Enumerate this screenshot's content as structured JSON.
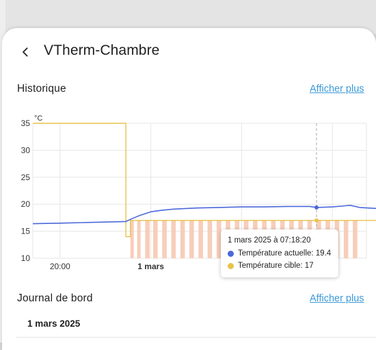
{
  "app": {
    "title": "VTherm-Chambre"
  },
  "history": {
    "heading": "Historique",
    "show_more": "Afficher plus"
  },
  "logbook": {
    "heading": "Journal de bord",
    "show_more": "Afficher plus",
    "date": "1 mars 2025"
  },
  "tooltip": {
    "title": "1 mars 2025 à 07:18:20",
    "rows": [
      {
        "label": "Température actuelle: 19.4",
        "color": "#4a68d9"
      },
      {
        "label": "Température cible: 17",
        "color": "#e8c34a"
      }
    ]
  },
  "colors": {
    "accent_link": "#3b9ad8",
    "current_temp": "#4a68d9",
    "target_temp": "#e8c34a",
    "heating": "#f6c9b2"
  },
  "chart_data": {
    "type": "line",
    "ylabel": "°C",
    "ylim": [
      10,
      35
    ],
    "yticks": [
      "35",
      "30",
      "25",
      "20",
      "15",
      "10"
    ],
    "xlim_hours": [
      18.8,
      9.5
    ],
    "xticks": [
      {
        "label": "20:00",
        "h": 20,
        "bold": false
      },
      {
        "label": "1 mars",
        "h": 24,
        "bold": true
      },
      {
        "label": "4:00",
        "h": 28,
        "bold": false
      },
      {
        "label": "8:0",
        "h": 32,
        "bold": false
      }
    ],
    "grid": true,
    "series": [
      {
        "name": "Température actuelle",
        "color": "#4a68d9",
        "points": [
          [
            18.8,
            16.4
          ],
          [
            20,
            16.5
          ],
          [
            21,
            16.6
          ],
          [
            22,
            16.7
          ],
          [
            22.9,
            16.8
          ],
          [
            23.1,
            17.2
          ],
          [
            23.5,
            17.9
          ],
          [
            24,
            18.6
          ],
          [
            24.5,
            18.9
          ],
          [
            25,
            19.1
          ],
          [
            26,
            19.3
          ],
          [
            27,
            19.4
          ],
          [
            28,
            19.5
          ],
          [
            29,
            19.5
          ],
          [
            30,
            19.6
          ],
          [
            31,
            19.6
          ],
          [
            31.3,
            19.4
          ],
          [
            32,
            19.5
          ],
          [
            32.8,
            19.8
          ],
          [
            33.2,
            19.4
          ],
          [
            34,
            19.2
          ],
          [
            35,
            18.6
          ],
          [
            36,
            18.1
          ],
          [
            37.0,
            17.7
          ],
          [
            37.2,
            16.2
          ],
          [
            37.5,
            15.8
          ],
          [
            38,
            15.8
          ],
          [
            39,
            15.8
          ],
          [
            40,
            15.7
          ],
          [
            41,
            15.7
          ],
          [
            41.5,
            16.0
          ],
          [
            42,
            16.1
          ],
          [
            43.5,
            16.2
          ]
        ]
      },
      {
        "name": "Température cible",
        "color": "#e8c34a",
        "points": [
          [
            18.8,
            35
          ],
          [
            22.9,
            35
          ],
          [
            22.9,
            14
          ],
          [
            23.1,
            14
          ],
          [
            23.1,
            17
          ],
          [
            43.5,
            17
          ]
        ]
      }
    ],
    "heating_periods": [
      [
        23.1,
        23.25
      ],
      [
        23.4,
        23.55
      ],
      [
        23.75,
        23.95
      ],
      [
        24.1,
        24.3
      ],
      [
        24.5,
        24.7
      ],
      [
        24.9,
        25.1
      ],
      [
        25.3,
        25.5
      ],
      [
        25.7,
        25.9
      ],
      [
        26.1,
        26.3
      ],
      [
        26.5,
        26.7
      ],
      [
        26.9,
        27.1
      ],
      [
        27.3,
        27.5
      ],
      [
        27.7,
        27.9
      ],
      [
        28.1,
        28.3
      ],
      [
        28.5,
        28.7
      ],
      [
        28.9,
        29.1
      ],
      [
        29.3,
        29.5
      ],
      [
        29.7,
        29.9
      ],
      [
        30.1,
        30.3
      ],
      [
        30.5,
        30.7
      ],
      [
        30.9,
        31.1
      ],
      [
        31.3,
        31.5
      ],
      [
        31.7,
        31.9
      ],
      [
        32.1,
        32.3
      ],
      [
        32.5,
        32.7
      ],
      [
        32.9,
        33.1
      ]
    ],
    "cursor_h": 31.3
  }
}
